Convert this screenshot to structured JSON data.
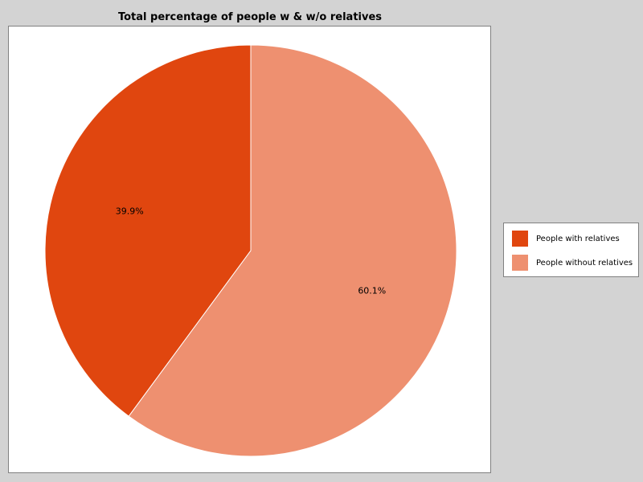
{
  "chart_data": {
    "type": "pie",
    "title": "Total percentage of people w & w/o relatives",
    "slices": [
      {
        "label": "People with relatives",
        "value": 39.9,
        "display": "39.9%",
        "color": "#e0460f"
      },
      {
        "label": "People without relatives",
        "value": 60.1,
        "display": "60.1%",
        "color": "#ee9070"
      }
    ],
    "legend_position": "right",
    "start_angle": "12 o'clock",
    "direction": "counterclockwise"
  }
}
